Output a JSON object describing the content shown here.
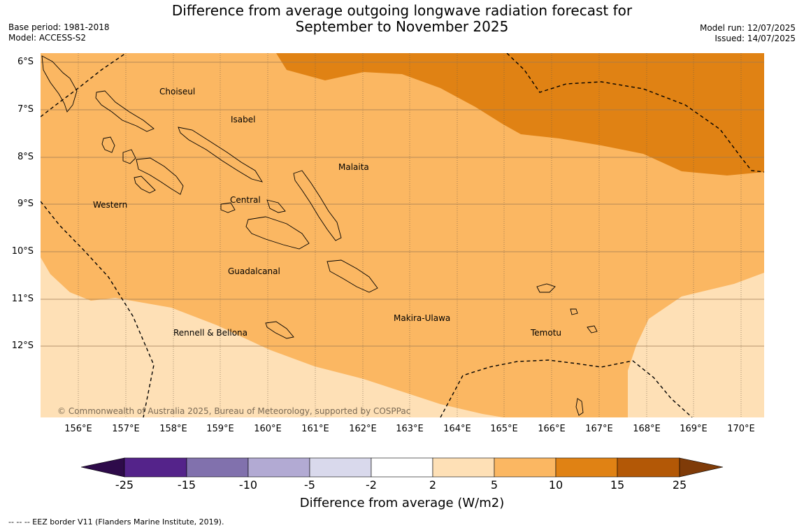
{
  "title_line1": "Difference from average outgoing longwave radiation forecast for",
  "title_line2": "September to November 2025",
  "base_period": "Base period: 1981-2018",
  "model": "Model: ACCESS-S2",
  "model_run": "Model run: 12/07/2025",
  "issued": "Issued: 14/07/2025",
  "lat_labels": [
    "6°S",
    "7°S",
    "8°S",
    "9°S",
    "10°S",
    "11°S",
    "12°S"
  ],
  "lon_labels": [
    "156°E",
    "157°E",
    "158°E",
    "159°E",
    "160°E",
    "161°E",
    "162°E",
    "163°E",
    "164°E",
    "165°E",
    "166°E",
    "167°E",
    "168°E",
    "169°E",
    "170°E"
  ],
  "regions": {
    "choiseul": "Choiseul",
    "isabel": "Isabel",
    "malaita": "Malaita",
    "western": "Western",
    "central": "Central",
    "guadalcanal": "Guadalcanal",
    "makira": "Makira-Ulawa",
    "rennell": "Rennell & Bellona",
    "temotu": "Temotu"
  },
  "copyright": "© Commonwealth of Australia 2025, Bureau of Meteorology, supported by COSPPac",
  "colorbar": {
    "ticks": [
      "-25",
      "-15",
      "-10",
      "-5",
      "-2",
      "2",
      "5",
      "10",
      "15",
      "25"
    ],
    "colors": [
      "#2e0b4a",
      "#54238a",
      "#8171ad",
      "#b2aad3",
      "#d9d9ec",
      "#ffffff",
      "#fee0b6",
      "#fbb762",
      "#e08214",
      "#b35806",
      "#7f3b08"
    ],
    "title": "Difference from average (W/m2)"
  },
  "map_colors": {
    "band_2_5": "#fee0b6",
    "band_5_10": "#fbb762",
    "band_10_15": "#e08214"
  },
  "footnote": "--  --  -- EEZ border V11 (Flanders Marine Institute, 2019)."
}
